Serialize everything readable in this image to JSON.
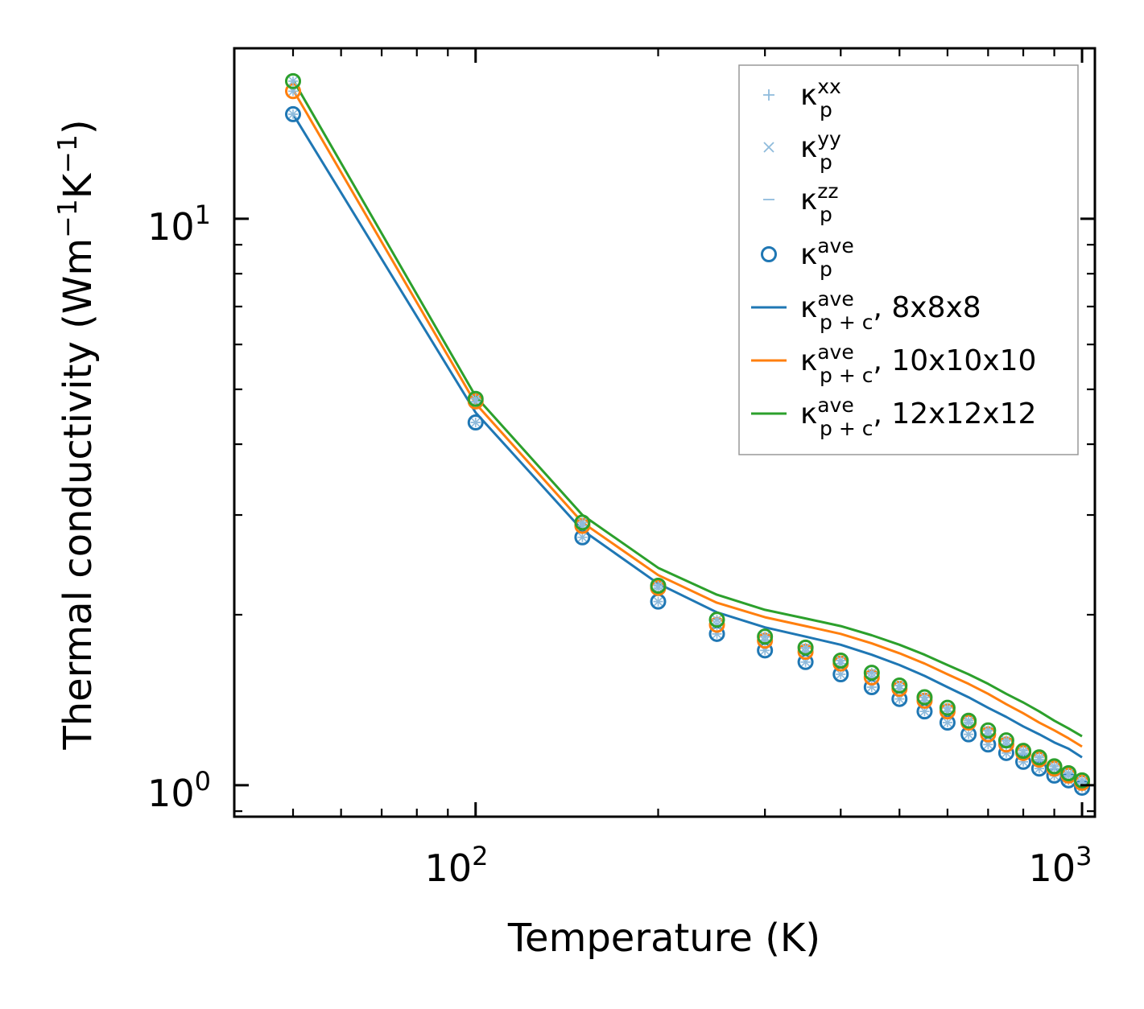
{
  "chart_data": {
    "type": "line+scatter",
    "xscale": "log",
    "yscale": "log",
    "xlim": [
      40,
      1050
    ],
    "ylim": [
      0.88,
      20
    ],
    "xlabel": "Temperature (K)",
    "ylabel": {
      "main": "Thermal conductivity (Wm",
      "exp1": "−1",
      "mid": "K",
      "exp2": "−1",
      "end": ")"
    },
    "x_ticks": [
      {
        "base": "10",
        "exp": "2",
        "value": 100
      },
      {
        "base": "10",
        "exp": "3",
        "value": 1000
      }
    ],
    "y_ticks": [
      {
        "base": "10",
        "exp": "0",
        "value": 1
      },
      {
        "base": "10",
        "exp": "1",
        "value": 10
      }
    ],
    "x": [
      50,
      100,
      150,
      200,
      250,
      300,
      350,
      400,
      450,
      500,
      550,
      600,
      650,
      700,
      750,
      800,
      850,
      900,
      950,
      1000
    ],
    "scatter_series": [
      {
        "grid": "8x8x8",
        "color": "#1f77b4",
        "values": [
          15.3,
          4.37,
          2.74,
          2.11,
          1.85,
          1.73,
          1.65,
          1.57,
          1.49,
          1.42,
          1.35,
          1.29,
          1.23,
          1.18,
          1.14,
          1.1,
          1.07,
          1.04,
          1.02,
          0.99
        ]
      },
      {
        "grid": "10x10x10",
        "color": "#ff7f0e",
        "values": [
          16.8,
          4.76,
          2.87,
          2.23,
          1.92,
          1.8,
          1.72,
          1.64,
          1.55,
          1.48,
          1.41,
          1.35,
          1.29,
          1.23,
          1.18,
          1.14,
          1.11,
          1.07,
          1.04,
          1.01
        ]
      },
      {
        "grid": "12x12x12",
        "color": "#2ca02c",
        "values": [
          17.5,
          4.81,
          2.91,
          2.25,
          1.96,
          1.83,
          1.75,
          1.66,
          1.58,
          1.5,
          1.43,
          1.37,
          1.3,
          1.25,
          1.2,
          1.15,
          1.12,
          1.08,
          1.05,
          1.02
        ]
      }
    ],
    "line_series": [
      {
        "grid": "8x8x8",
        "color": "#1f77b4",
        "values": [
          15.3,
          4.55,
          2.82,
          2.27,
          2.02,
          1.9,
          1.83,
          1.77,
          1.7,
          1.63,
          1.56,
          1.49,
          1.43,
          1.37,
          1.32,
          1.27,
          1.23,
          1.19,
          1.16,
          1.12
        ]
      },
      {
        "grid": "10x10x10",
        "color": "#ff7f0e",
        "values": [
          16.9,
          4.72,
          2.91,
          2.35,
          2.1,
          1.98,
          1.91,
          1.85,
          1.78,
          1.71,
          1.64,
          1.57,
          1.51,
          1.45,
          1.39,
          1.34,
          1.29,
          1.25,
          1.21,
          1.17
        ]
      },
      {
        "grid": "12x12x12",
        "color": "#2ca02c",
        "values": [
          17.6,
          4.86,
          3.0,
          2.42,
          2.17,
          2.04,
          1.97,
          1.91,
          1.84,
          1.77,
          1.7,
          1.63,
          1.57,
          1.51,
          1.45,
          1.4,
          1.35,
          1.3,
          1.26,
          1.22
        ]
      }
    ],
    "legend": {
      "placement": "top-right",
      "entries": [
        {
          "marker": "plus",
          "color": "#8fbbdc",
          "symbol": "κ",
          "sup": "xx",
          "sub": "p",
          "suffix": ""
        },
        {
          "marker": "cross",
          "color": "#8fbbdc",
          "symbol": "κ",
          "sup": "yy",
          "sub": "p",
          "suffix": ""
        },
        {
          "marker": "dash",
          "color": "#8fbbdc",
          "symbol": "κ",
          "sup": "zz",
          "sub": "p",
          "suffix": ""
        },
        {
          "marker": "circle",
          "color": "#1f77b4",
          "symbol": "κ",
          "sup": "ave",
          "sub": "p",
          "suffix": ""
        },
        {
          "marker": "line",
          "color": "#1f77b4",
          "symbol": "κ",
          "sup": "ave",
          "sub": "p + c",
          "suffix": ", 8x8x8"
        },
        {
          "marker": "line",
          "color": "#ff7f0e",
          "symbol": "κ",
          "sup": "ave",
          "sub": "p + c",
          "suffix": ", 10x10x10"
        },
        {
          "marker": "line",
          "color": "#2ca02c",
          "symbol": "κ",
          "sup": "ave",
          "sub": "p + c",
          "suffix": ", 12x12x12"
        }
      ]
    }
  }
}
